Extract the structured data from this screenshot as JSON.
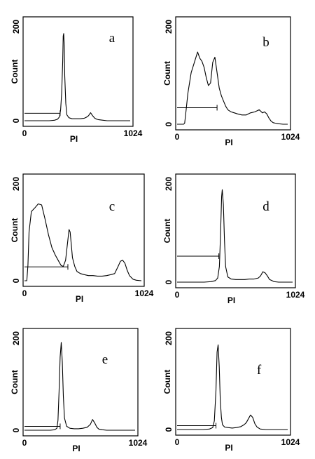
{
  "chart_data": [
    {
      "type": "line",
      "panel_label": "a",
      "xlabel": "PI",
      "ylabel": "Count",
      "x_tick_labels": [
        "0",
        "1024"
      ],
      "y_tick_labels": [
        "0",
        "200"
      ],
      "xlim": [
        0,
        1024
      ],
      "ylim": [
        0,
        200
      ],
      "grid": false,
      "series": [
        {
          "x": [
            0,
            40,
            80,
            120,
            160,
            200,
            240,
            290,
            320,
            340,
            350,
            360,
            370,
            375,
            380,
            385,
            390,
            400,
            410,
            430,
            460,
            500,
            540,
            580,
            600,
            620,
            640,
            660,
            680,
            700,
            720,
            760,
            800,
            850,
            900,
            1024
          ],
          "y": [
            0,
            0,
            0,
            0,
            0,
            0,
            0,
            1,
            3,
            8,
            22,
            55,
            120,
            170,
            175,
            150,
            90,
            35,
            12,
            6,
            4,
            4,
            4,
            5,
            7,
            10,
            16,
            10,
            5,
            3,
            2,
            1,
            0,
            0,
            0,
            0
          ]
        }
      ],
      "gate": {
        "from": 0,
        "to": 345,
        "level": 15
      }
    },
    {
      "type": "line",
      "panel_label": "b",
      "xlabel": "PI",
      "ylabel": "Count",
      "x_tick_labels": [
        "0",
        "1024"
      ],
      "y_tick_labels": [
        "0",
        "200"
      ],
      "xlim": [
        0,
        1024
      ],
      "ylim": [
        0,
        200
      ],
      "grid": false,
      "series": [
        {
          "x": [
            0,
            40,
            60,
            70,
            80,
            100,
            130,
            160,
            190,
            210,
            230,
            250,
            270,
            290,
            310,
            330,
            350,
            370,
            390,
            410,
            430,
            450,
            470,
            500,
            530,
            560,
            600,
            640,
            680,
            720,
            760,
            790,
            810,
            830,
            850,
            870,
            890,
            910,
            940,
            980,
            1024
          ],
          "y": [
            0,
            0,
            0,
            2,
            20,
            60,
            100,
            120,
            140,
            128,
            122,
            110,
            90,
            75,
            80,
            120,
            130,
            100,
            70,
            55,
            45,
            35,
            28,
            24,
            22,
            20,
            18,
            18,
            22,
            24,
            28,
            22,
            24,
            20,
            12,
            6,
            3,
            2,
            1,
            0,
            0
          ]
        }
      ],
      "gate": {
        "from": 0,
        "to": 370,
        "level": 32
      }
    },
    {
      "type": "line",
      "panel_label": "c",
      "xlabel": "PI",
      "ylabel": "Count",
      "x_tick_labels": [
        "0",
        "1024"
      ],
      "y_tick_labels": [
        "0",
        "200"
      ],
      "xlim": [
        0,
        1024
      ],
      "ylim": [
        0,
        200
      ],
      "grid": false,
      "series": [
        {
          "x": [
            0,
            20,
            30,
            40,
            60,
            90,
            120,
            150,
            180,
            210,
            240,
            270,
            300,
            320,
            340,
            360,
            380,
            390,
            400,
            410,
            420,
            440,
            460,
            490,
            520,
            560,
            600,
            640,
            680,
            720,
            760,
            790,
            820,
            840,
            860,
            880,
            900,
            920,
            950,
            980,
            1024
          ],
          "y": [
            0,
            0,
            30,
            95,
            135,
            142,
            150,
            148,
            120,
            90,
            65,
            50,
            38,
            30,
            28,
            40,
            80,
            100,
            95,
            70,
            45,
            28,
            18,
            14,
            12,
            10,
            10,
            9,
            9,
            10,
            12,
            14,
            28,
            38,
            40,
            34,
            20,
            10,
            3,
            1,
            0
          ]
        }
      ],
      "gate": {
        "from": 0,
        "to": 380,
        "level": 27
      }
    },
    {
      "type": "line",
      "panel_label": "d",
      "xlabel": "PI",
      "ylabel": "Count",
      "x_tick_labels": [
        "0",
        "1024"
      ],
      "y_tick_labels": [
        "0",
        "200"
      ],
      "xlim": [
        0,
        1024
      ],
      "ylim": [
        0,
        200
      ],
      "grid": false,
      "series": [
        {
          "x": [
            0,
            80,
            160,
            240,
            300,
            340,
            360,
            375,
            385,
            395,
            400,
            410,
            420,
            430,
            450,
            480,
            520,
            560,
            600,
            640,
            680,
            720,
            740,
            760,
            780,
            800,
            820,
            860,
            900,
            1024
          ],
          "y": [
            0,
            0,
            0,
            0,
            1,
            3,
            8,
            30,
            90,
            165,
            178,
            150,
            80,
            30,
            10,
            6,
            5,
            5,
            5,
            6,
            6,
            8,
            12,
            20,
            18,
            12,
            5,
            1,
            0,
            0
          ]
        }
      ],
      "gate": {
        "from": 0,
        "to": 370,
        "level": 50
      }
    },
    {
      "type": "line",
      "panel_label": "e",
      "xlabel": "PI",
      "ylabel": "Count",
      "x_tick_labels": [
        "0",
        "1024"
      ],
      "y_tick_labels": [
        "0",
        "200"
      ],
      "xlim": [
        0,
        1024
      ],
      "ylim": [
        0,
        200
      ],
      "grid": false,
      "series": [
        {
          "x": [
            0,
            60,
            120,
            180,
            240,
            280,
            300,
            310,
            320,
            330,
            340,
            350,
            360,
            370,
            390,
            420,
            460,
            500,
            540,
            580,
            610,
            630,
            650,
            670,
            690,
            720,
            760,
            820,
            900,
            1024
          ],
          "y": [
            0,
            0,
            0,
            0,
            0,
            1,
            4,
            20,
            80,
            150,
            180,
            140,
            70,
            25,
            8,
            4,
            3,
            3,
            4,
            6,
            12,
            22,
            15,
            6,
            2,
            1,
            0,
            0,
            0,
            0
          ]
        }
      ],
      "gate": {
        "from": 0,
        "to": 330,
        "level": 8
      }
    },
    {
      "type": "line",
      "panel_label": "f",
      "xlabel": "PI",
      "ylabel": "Count",
      "x_tick_labels": [
        "0",
        "1024"
      ],
      "y_tick_labels": [
        "0",
        "200"
      ],
      "xlim": [
        0,
        1024
      ],
      "ylim": [
        0,
        200
      ],
      "grid": false,
      "series": [
        {
          "x": [
            0,
            80,
            160,
            240,
            300,
            330,
            345,
            360,
            370,
            380,
            390,
            400,
            410,
            420,
            440,
            470,
            510,
            550,
            590,
            620,
            640,
            660,
            680,
            700,
            720,
            740,
            770,
            820,
            900,
            1024
          ],
          "y": [
            0,
            0,
            0,
            0,
            1,
            4,
            18,
            80,
            160,
            175,
            130,
            60,
            25,
            10,
            5,
            4,
            3,
            4,
            6,
            10,
            14,
            22,
            30,
            25,
            12,
            5,
            1,
            0,
            0,
            0
          ]
        }
      ],
      "gate": {
        "from": 0,
        "to": 360,
        "level": 8
      }
    }
  ]
}
